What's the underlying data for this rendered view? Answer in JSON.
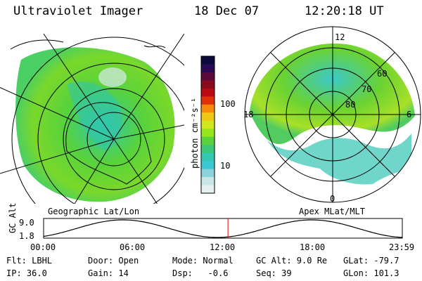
{
  "header": {
    "title": "Ultraviolet Imager",
    "date": "18 Dec 07",
    "time": "12:20:18 UT"
  },
  "left_panel": {
    "caption": "Geographic Lat/Lon"
  },
  "right_panel": {
    "caption": "Apex MLat/MLT",
    "mlt_labels": {
      "top": "12",
      "left": "18",
      "right": "6",
      "bottom": "0"
    },
    "lat_labels": [
      "60",
      "70",
      "80"
    ]
  },
  "colorbar": {
    "label": "photon cm⁻²s⁻¹",
    "ticks": [
      "100",
      "10"
    ],
    "colors": [
      "#0a0a3c",
      "#2a0a55",
      "#5a0a3a",
      "#8a0a1e",
      "#b80a10",
      "#e0300a",
      "#f58a0a",
      "#f0c814",
      "#d2e61e",
      "#96e61e",
      "#5ad23c",
      "#3cc878",
      "#32c8b4",
      "#3cc8d2",
      "#8cd2dc",
      "#c8e6e6",
      "#e6f0f0"
    ]
  },
  "orbit": {
    "ylabel": "GC Alt",
    "yticks": [
      "9.0",
      "1.8"
    ],
    "xticks": [
      "00:00",
      "06:00",
      "12:00",
      "18:00",
      "23:59"
    ],
    "current_time_fraction": 0.514,
    "cursor_color": "#e00000"
  },
  "status": {
    "flt": "Flt: LBHL",
    "ip": "IP: 36.0",
    "door": "Door: Open",
    "gain": "Gain: 14",
    "mode": "Mode: Normal",
    "dsp": "Dsp:   -0.6",
    "gcalt": "GC Alt: 9.0 Re",
    "seq": "Seq: 39",
    "glat": "GLat: -79.7",
    "glon": "GLon: 101.3"
  }
}
